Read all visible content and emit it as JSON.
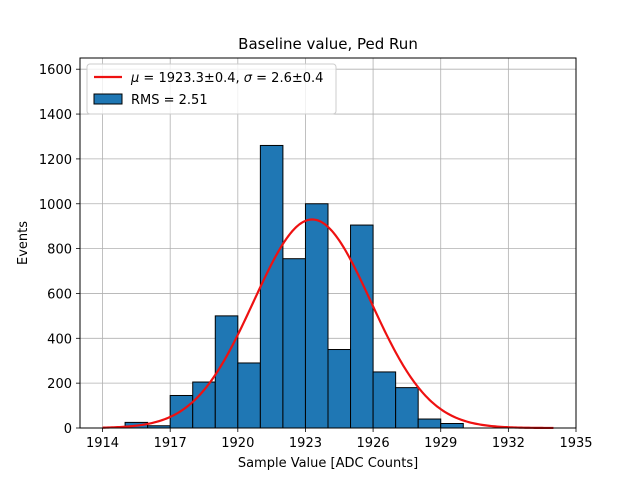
{
  "chart_data": {
    "type": "bar",
    "title": "Baseline value, Ped Run",
    "xlabel": "Sample Value [ADC Counts]",
    "ylabel": "Events",
    "xlim": [
      1913.0,
      1935.0
    ],
    "ylim": [
      0,
      1650
    ],
    "xticks": [
      1914,
      1917,
      1920,
      1923,
      1926,
      1929,
      1932,
      1935
    ],
    "yticks": [
      0,
      200,
      400,
      600,
      800,
      1000,
      1200,
      1400,
      1600
    ],
    "grid": true,
    "histogram": {
      "bin_edges": [
        1914.0,
        1915.0,
        1916.0,
        1917.0,
        1918.0,
        1919.0,
        1920.0,
        1921.0,
        1922.0,
        1923.0,
        1924.0,
        1925.0,
        1926.0,
        1927.0,
        1928.0,
        1929.0,
        1930.0,
        1931.0,
        1932.0,
        1933.0,
        1934.0
      ],
      "counts": [
        0,
        25,
        10,
        145,
        205,
        500,
        290,
        1260,
        755,
        1000,
        350,
        905,
        250,
        180,
        40,
        20,
        0,
        0,
        0,
        0
      ],
      "color": "#1f77b4",
      "edge_color": "#000000",
      "legend": "RMS = 2.51"
    },
    "fit": {
      "type": "gaussian",
      "mu": 1923.3,
      "sigma": 2.6,
      "amplitude": 930,
      "x_range": [
        1914,
        1934
      ],
      "color": "#ee1111",
      "legend_prefix_mu": "μ",
      "legend_mu_value": " = 1923.3±0.4, ",
      "legend_prefix_sigma": "σ",
      "legend_sigma_value": " = 2.6±0.4"
    },
    "legend_position": "upper-left"
  }
}
